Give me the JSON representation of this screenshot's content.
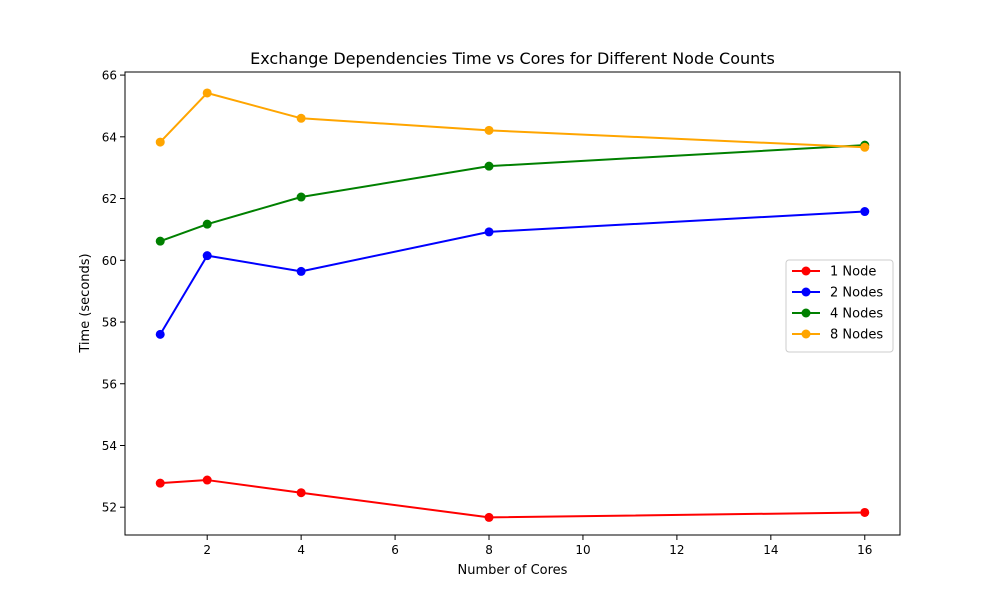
{
  "chart_data": {
    "type": "line",
    "title": "Exchange Dependencies Time vs Cores for Different Node Counts",
    "xlabel": "Number of Cores",
    "ylabel": "Time (seconds)",
    "x": [
      1,
      2,
      4,
      8,
      16
    ],
    "xlim": [
      0.25,
      16.75
    ],
    "ylim": [
      51.1,
      66.1
    ],
    "xticks": [
      2,
      4,
      6,
      8,
      10,
      12,
      14,
      16
    ],
    "yticks": [
      52,
      54,
      56,
      58,
      60,
      62,
      64,
      66
    ],
    "grid": false,
    "legend_position": "center-right",
    "marker": "circle",
    "series": [
      {
        "name": "1 Node",
        "color": "#ff0000",
        "values": [
          52.78,
          52.88,
          52.47,
          51.67,
          51.83
        ]
      },
      {
        "name": "2 Nodes",
        "color": "#0000ff",
        "values": [
          57.6,
          60.15,
          59.64,
          60.92,
          61.58
        ]
      },
      {
        "name": "4 Nodes",
        "color": "#008000",
        "values": [
          60.62,
          61.17,
          62.05,
          63.05,
          63.73
        ]
      },
      {
        "name": "8 Nodes",
        "color": "#ffa500",
        "values": [
          63.83,
          65.42,
          64.6,
          64.21,
          63.66
        ]
      }
    ]
  }
}
